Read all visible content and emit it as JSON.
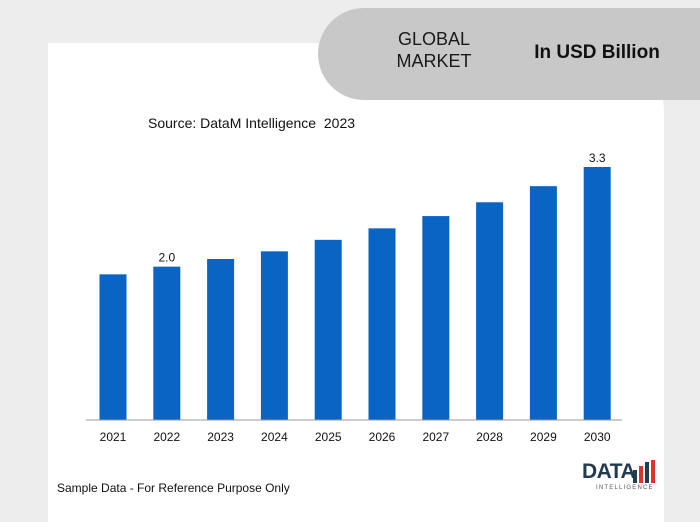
{
  "header": {
    "market_line1": "GLOBAL",
    "market_line2": "MARKET",
    "unit": "In USD Billion"
  },
  "source": "Source: DataM Intelligence  2023",
  "footnote": "Sample Data - For Reference Purpose Only",
  "logo": {
    "word": "DATA",
    "sub": "INTELLIGENCE"
  },
  "colors": {
    "bar": "#0a64c4",
    "header_pill": "#c8c8c8",
    "backdrop": "#ededed",
    "logo_accent": "#e0322d"
  },
  "chart_data": {
    "type": "bar",
    "categories": [
      "2021",
      "2022",
      "2023",
      "2024",
      "2025",
      "2026",
      "2027",
      "2028",
      "2029",
      "2030"
    ],
    "values": [
      1.9,
      2.0,
      2.1,
      2.2,
      2.35,
      2.5,
      2.66,
      2.84,
      3.05,
      3.3
    ],
    "data_labels": [
      "",
      "2.0",
      "",
      "",
      "",
      "",
      "",
      "",
      "",
      "3.3"
    ],
    "title": "",
    "xlabel": "",
    "ylabel": "",
    "ylim": [
      0,
      3.3
    ],
    "grid": false,
    "legend": "none"
  }
}
